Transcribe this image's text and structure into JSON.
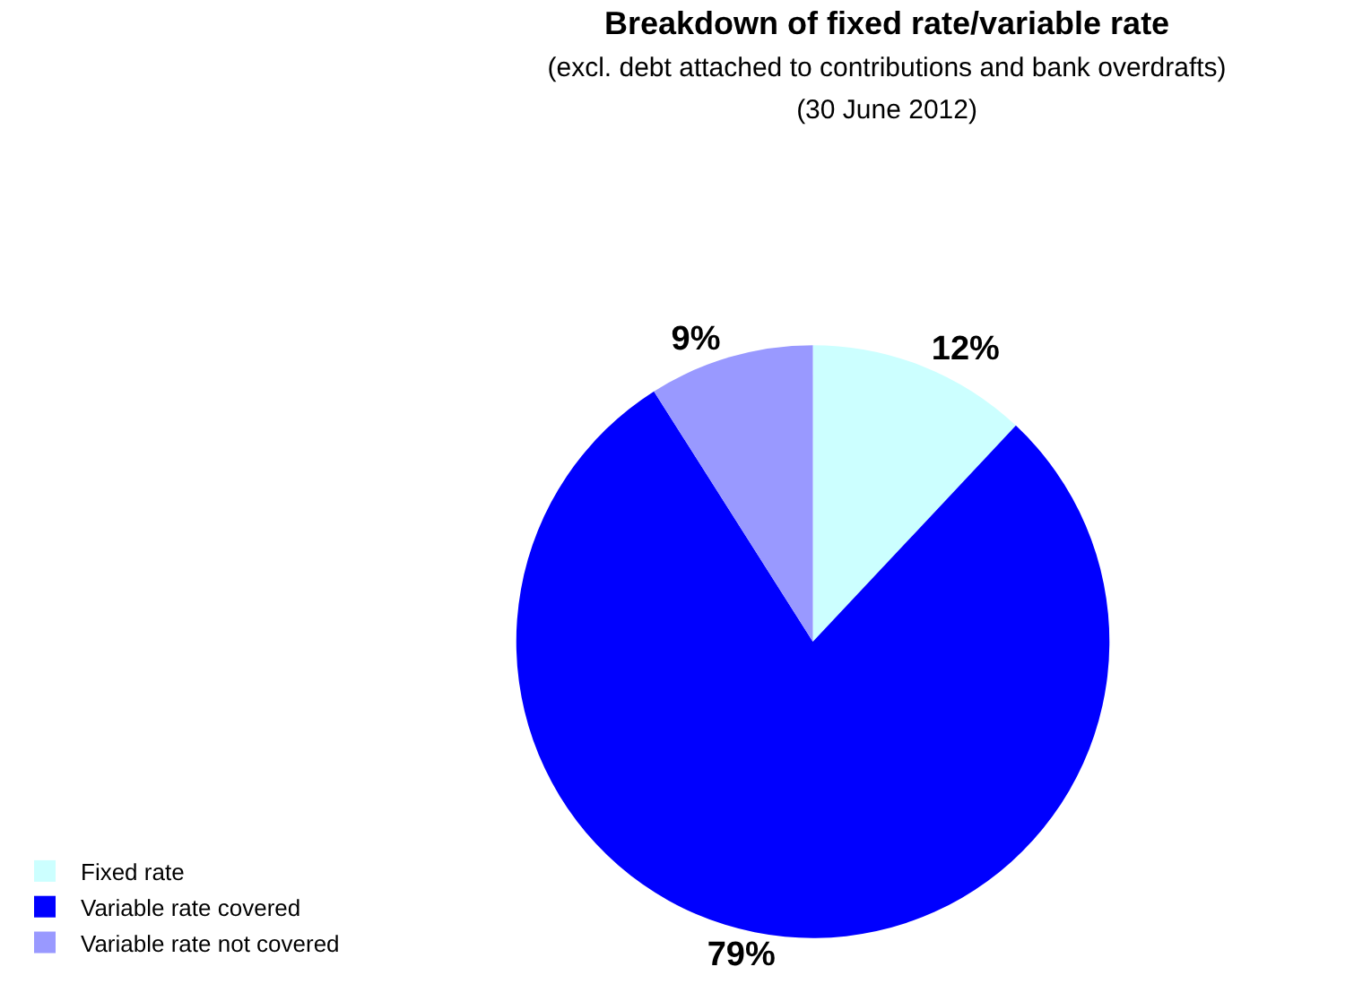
{
  "chart_data": {
    "type": "pie",
    "title": "Breakdown of fixed rate/variable rate",
    "subtitle": "(excl. debt attached to contributions and bank overdrafts)\n(30 June 2012)",
    "categories": [
      "Fixed rate",
      "Variable rate covered",
      "Variable rate not covered"
    ],
    "values": [
      12,
      79,
      9
    ],
    "colors": [
      "#ccffff",
      "#0000ff",
      "#9999ff"
    ],
    "value_labels": [
      "12%",
      "79%",
      "9%"
    ],
    "legend": "bottom left"
  }
}
